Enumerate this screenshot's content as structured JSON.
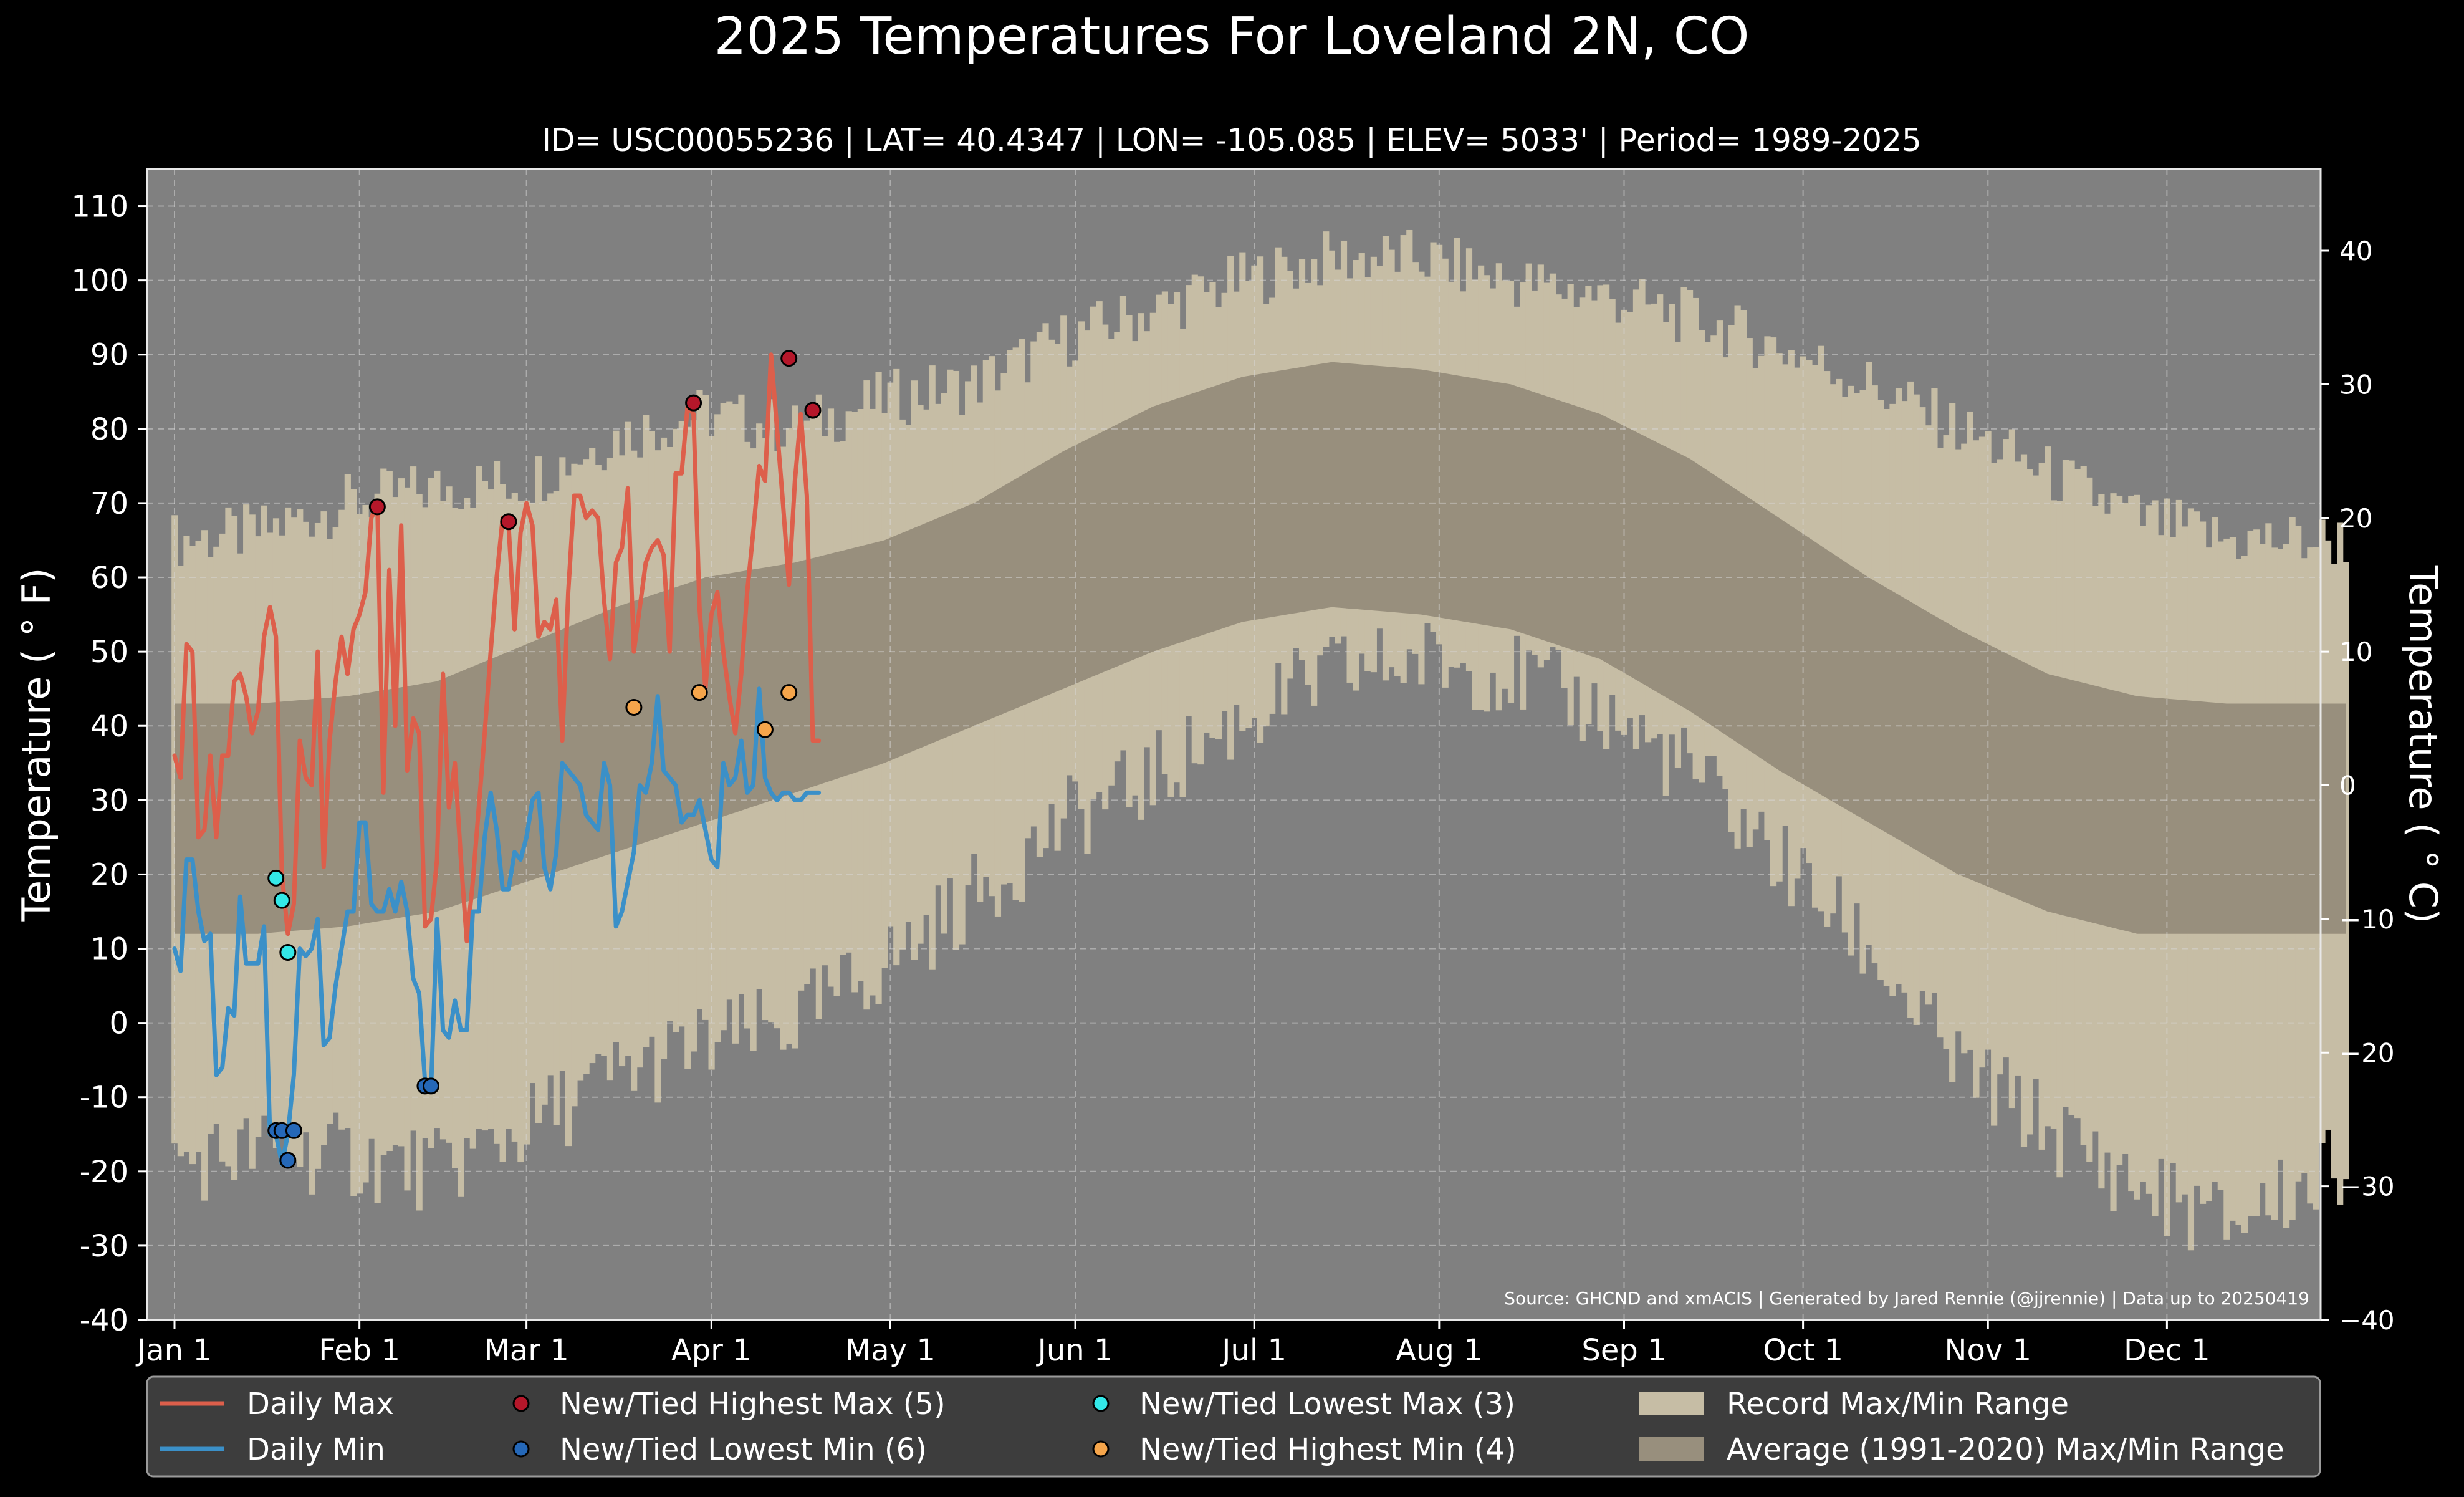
{
  "chart_data": {
    "type": "line",
    "title": "2025 Temperatures For Loveland 2N, CO",
    "subtitle": "ID= USC00055236 | LAT= 40.4347 | LON= -105.085 | ELEV= 5033' | Period= 1989-2025",
    "ylabel_left": "Temperature ( ° F)",
    "ylabel_right": "Temperature ( ° C)",
    "source": "Source: GHCND and xmACIS | Generated by Jared Rennie (@jjrennie) | Data up to 20250419",
    "ylim_f": [
      -40,
      115
    ],
    "yticks_f": [
      "110",
      "100",
      "90",
      "80",
      "70",
      "60",
      "50",
      "40",
      "30",
      "20",
      "10",
      "0",
      "-10",
      "-20",
      "-30",
      "-40"
    ],
    "yticks_c": [
      "40",
      "30",
      "20",
      "10",
      "0",
      "−10",
      "−20",
      "−30",
      "−40"
    ],
    "x_axis": {
      "labels": [
        "Jan 1",
        "Feb 1",
        "Mar 1",
        "Apr 1",
        "May 1",
        "Jun 1",
        "Jul 1",
        "Aug 1",
        "Sep 1",
        "Oct 1",
        "Nov 1",
        "Dec 1"
      ],
      "day_of_year": [
        1,
        32,
        60,
        91,
        121,
        152,
        182,
        213,
        244,
        274,
        305,
        335
      ],
      "range": [
        1,
        365
      ]
    },
    "grid": true,
    "legend_position": "bottom",
    "colors": {
      "background": "#000000",
      "plot_background": "#808080",
      "record_range": "#c6bda5",
      "average_range": "#988f7d",
      "daily_max": "#dd5f4b",
      "daily_min": "#3b90c8",
      "new_highest_max": "#b5172a",
      "new_lowest_min": "#2568b8",
      "new_lowest_max": "#33e8e8",
      "new_highest_min": "#f5a54b"
    },
    "average_range": {
      "note": "Average (1991-2020) daily max/min envelope, sampled every 15 days",
      "day": [
        1,
        15,
        30,
        45,
        60,
        75,
        90,
        105,
        120,
        135,
        150,
        165,
        180,
        195,
        210,
        225,
        240,
        255,
        270,
        285,
        300,
        315,
        330,
        345,
        365
      ],
      "max": [
        43,
        43,
        44,
        46,
        51,
        56,
        60,
        62,
        65,
        70,
        77,
        83,
        87,
        89,
        88,
        86,
        82,
        76,
        68,
        60,
        53,
        47,
        44,
        43,
        43
      ],
      "min": [
        12,
        12,
        13,
        15,
        19,
        23,
        27,
        31,
        35,
        40,
        45,
        50,
        54,
        56,
        55,
        53,
        49,
        42,
        34,
        27,
        20,
        15,
        12,
        12,
        12
      ]
    },
    "record_range": {
      "note": "Record max/min envelope, sampled every 15 days",
      "day": [
        1,
        15,
        30,
        45,
        60,
        75,
        90,
        105,
        120,
        135,
        150,
        165,
        180,
        195,
        210,
        225,
        240,
        255,
        270,
        285,
        300,
        315,
        330,
        345,
        365
      ],
      "max": [
        65,
        66,
        70,
        72,
        73,
        79,
        82,
        80,
        84,
        86,
        92,
        96,
        100,
        103,
        103,
        100,
        98,
        95,
        91,
        86,
        80,
        74,
        68,
        65,
        65
      ],
      "min": [
        -19,
        -17,
        -18,
        -20,
        -14,
        -7,
        -3,
        0,
        8,
        17,
        27,
        33,
        41,
        47,
        49,
        47,
        42,
        34,
        22,
        10,
        -6,
        -14,
        -22,
        -27,
        -19
      ]
    },
    "series": [
      {
        "name": "Daily Max",
        "x": [
          1,
          2,
          3,
          4,
          5,
          6,
          7,
          8,
          9,
          10,
          11,
          12,
          13,
          14,
          15,
          16,
          17,
          18,
          19,
          20,
          21,
          22,
          23,
          24,
          25,
          26,
          27,
          28,
          29,
          30,
          31,
          32,
          33,
          34,
          35,
          36,
          37,
          38,
          39,
          40,
          41,
          42,
          43,
          44,
          45,
          46,
          47,
          48,
          49,
          50,
          51,
          52,
          53,
          54,
          55,
          56,
          57,
          58,
          59,
          60,
          61,
          62,
          63,
          64,
          65,
          66,
          67,
          68,
          69,
          70,
          71,
          72,
          73,
          74,
          75,
          76,
          77,
          78,
          79,
          80,
          81,
          82,
          83,
          84,
          85,
          86,
          87,
          88,
          89,
          90,
          91,
          92,
          93,
          94,
          95,
          96,
          97,
          98,
          99,
          100,
          101,
          102,
          103,
          104,
          105,
          106,
          107,
          108,
          109
        ],
        "values": [
          36,
          33,
          51,
          50,
          25,
          26,
          36,
          25,
          36,
          36,
          46,
          47,
          44,
          39,
          42,
          52,
          56,
          52,
          20,
          12,
          16,
          38,
          33,
          32,
          50,
          21,
          38,
          46,
          52,
          47,
          53,
          55,
          58,
          68,
          70,
          31,
          61,
          40,
          67,
          34,
          41,
          39,
          13,
          14,
          22,
          47,
          29,
          35,
          22,
          11,
          19,
          29,
          39,
          50,
          60,
          68,
          67,
          53,
          66,
          70,
          67,
          52,
          54,
          53,
          57,
          38,
          58,
          71,
          71,
          68,
          69,
          68,
          57,
          49,
          62,
          64,
          72,
          50,
          56,
          62,
          64,
          65,
          63,
          50,
          74,
          74,
          83,
          82,
          56,
          45,
          55,
          58,
          50,
          44,
          39,
          47,
          58,
          66,
          75,
          73,
          90,
          80,
          70,
          59,
          73,
          82,
          71,
          38,
          38
        ]
      },
      {
        "name": "Daily Min",
        "x": [
          1,
          2,
          3,
          4,
          5,
          6,
          7,
          8,
          9,
          10,
          11,
          12,
          13,
          14,
          15,
          16,
          17,
          18,
          19,
          20,
          21,
          22,
          23,
          24,
          25,
          26,
          27,
          28,
          29,
          30,
          31,
          32,
          33,
          34,
          35,
          36,
          37,
          38,
          39,
          40,
          41,
          42,
          43,
          44,
          45,
          46,
          47,
          48,
          49,
          50,
          51,
          52,
          53,
          54,
          55,
          56,
          57,
          58,
          59,
          60,
          61,
          62,
          63,
          64,
          65,
          66,
          67,
          68,
          69,
          70,
          71,
          72,
          73,
          74,
          75,
          76,
          77,
          78,
          79,
          80,
          81,
          82,
          83,
          84,
          85,
          86,
          87,
          88,
          89,
          90,
          91,
          92,
          93,
          94,
          95,
          96,
          97,
          98,
          99,
          100,
          101,
          102,
          103,
          104,
          105,
          106,
          107,
          108,
          109
        ],
        "values": [
          10,
          7,
          22,
          22,
          15,
          11,
          12,
          -7,
          -6,
          2,
          1,
          17,
          8,
          8,
          8,
          13,
          -15,
          -15,
          -19,
          -15,
          -7,
          10,
          9,
          10,
          14,
          -3,
          -2,
          5,
          10,
          15,
          15,
          27,
          27,
          16,
          15,
          15,
          18,
          15,
          19,
          15,
          6,
          4,
          -8,
          -9,
          14,
          -1,
          -2,
          3,
          -1,
          -1,
          15,
          15,
          25,
          31,
          26,
          18,
          18,
          23,
          22,
          25,
          30,
          31,
          21,
          18,
          23,
          35,
          34,
          33,
          32,
          28,
          27,
          26,
          35,
          32,
          13,
          15,
          19,
          23,
          32,
          31,
          35,
          44,
          34,
          33,
          32,
          27,
          28,
          28,
          30,
          26,
          22,
          21,
          35,
          32,
          33,
          38,
          31,
          32,
          45,
          33,
          31,
          30,
          31,
          31,
          30,
          30,
          31,
          31,
          31
        ]
      }
    ],
    "markers": [
      {
        "name": "New/Tied Highest Max (5)",
        "points": [
          [
            35,
            69.5
          ],
          [
            57,
            67.5
          ],
          [
            88,
            83.5
          ],
          [
            104,
            89.5
          ],
          [
            108,
            82.5
          ]
        ]
      },
      {
        "name": "New/Tied Lowest Min (6)",
        "points": [
          [
            18,
            -14.5
          ],
          [
            19,
            -14.5
          ],
          [
            21,
            -14.5
          ],
          [
            20,
            -18.5
          ],
          [
            43,
            -8.5
          ],
          [
            44,
            -8.5
          ]
        ]
      },
      {
        "name": "New/Tied Lowest Max (3)",
        "points": [
          [
            18,
            19.5
          ],
          [
            19,
            16.5
          ],
          [
            20,
            9.5
          ]
        ]
      },
      {
        "name": "New/Tied Highest Min (4)",
        "points": [
          [
            78,
            42.5
          ],
          [
            89,
            44.5
          ],
          [
            100,
            39.5
          ],
          [
            104,
            44.5
          ]
        ]
      }
    ],
    "legend": [
      {
        "label": "Daily Max",
        "kind": "line",
        "color": "#dd5f4b"
      },
      {
        "label": "Daily Min",
        "kind": "line",
        "color": "#3b90c8"
      },
      {
        "label": "New/Tied Highest Max (5)",
        "kind": "dot",
        "color": "#b5172a"
      },
      {
        "label": "New/Tied Lowest Min (6)",
        "kind": "dot",
        "color": "#2568b8"
      },
      {
        "label": "New/Tied Lowest Max (3)",
        "kind": "dot",
        "color": "#33e8e8"
      },
      {
        "label": "New/Tied Highest Min (4)",
        "kind": "dot",
        "color": "#f5a54b"
      },
      {
        "label": "Record Max/Min Range",
        "kind": "patch",
        "color": "#c6bda5"
      },
      {
        "label": "Average (1991-2020) Max/Min Range",
        "kind": "patch",
        "color": "#988f7d"
      }
    ]
  }
}
